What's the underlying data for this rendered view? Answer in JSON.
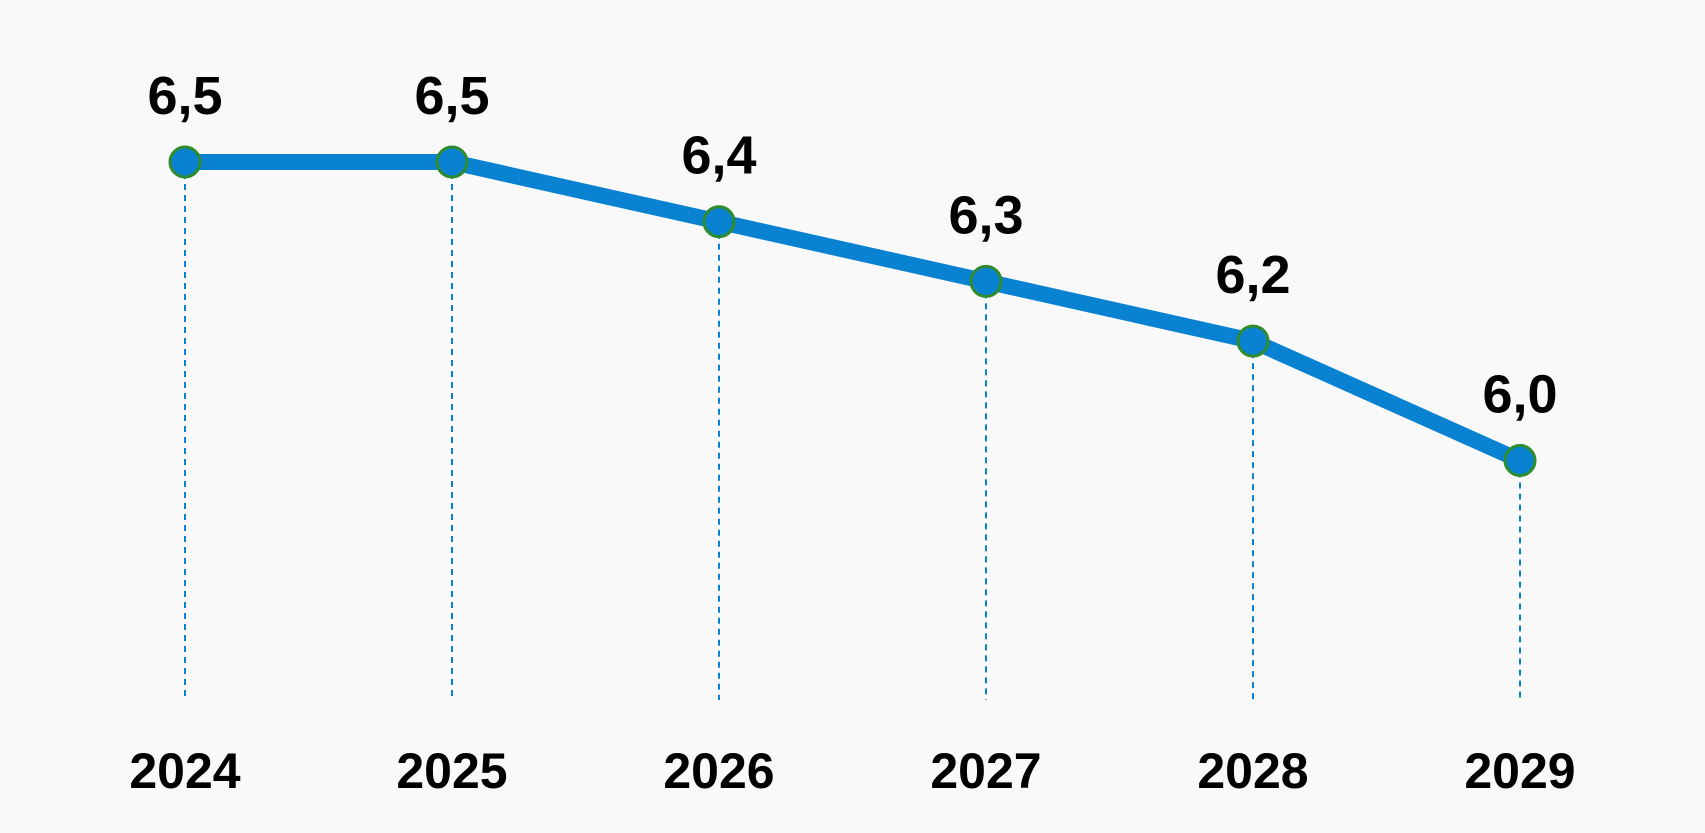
{
  "chart_data": {
    "type": "line",
    "categories": [
      "2024",
      "2025",
      "2026",
      "2027",
      "2028",
      "2029"
    ],
    "series": [
      {
        "values": [
          6.5,
          6.5,
          6.4,
          6.3,
          6.2,
          6.0
        ],
        "data_labels": [
          "6,5",
          "6,5",
          "6,4",
          "6,3",
          "6,2",
          "6,0"
        ]
      }
    ],
    "ylim": [
      5.1,
      6.5
    ],
    "grid": "dashed vertical drop lines",
    "legend": "none",
    "colors": {
      "line": "#0a82d2",
      "marker_outline": "#2e8b2e",
      "drop_line": "#0a82d2",
      "background": "#f9f9f9",
      "text": "#000000"
    }
  }
}
